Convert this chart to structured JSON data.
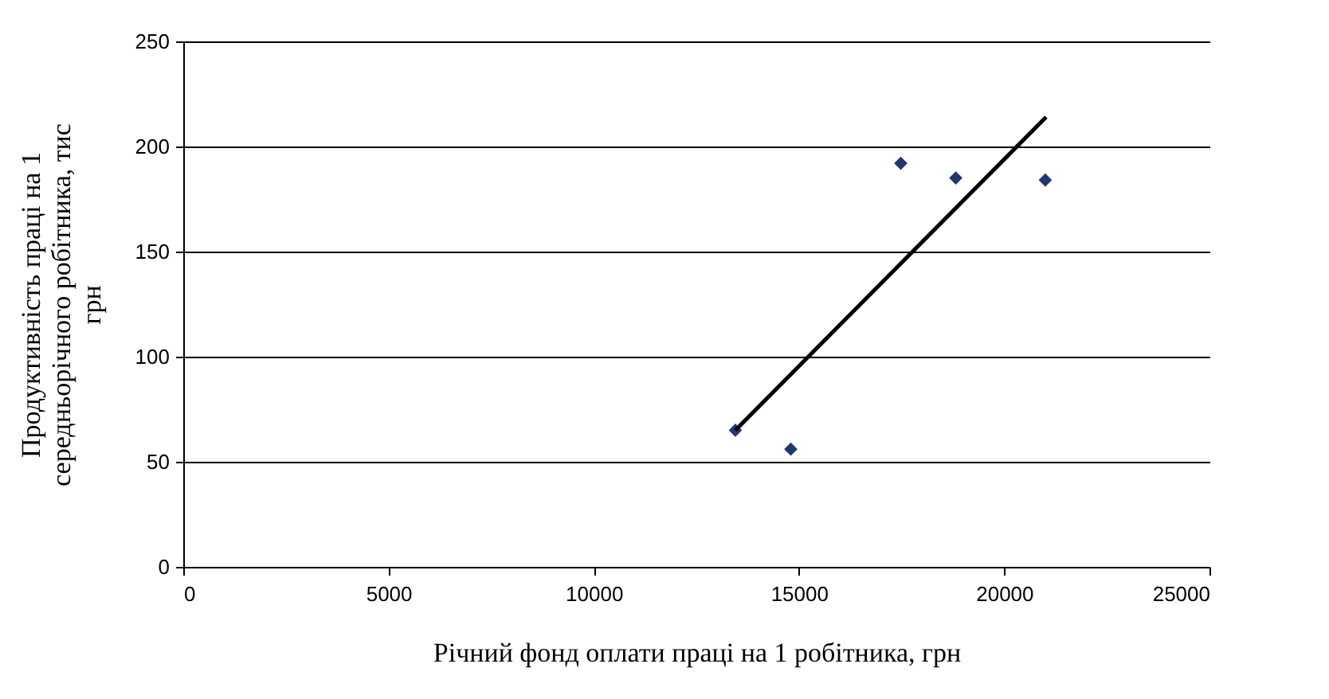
{
  "chart_data": {
    "type": "scatter",
    "xlabel": "Річний фонд оплати праці на 1 робітника, грн",
    "ylabel": "Продуктивність праці на 1 середньорічного робітника, тис грн",
    "xlim": [
      0,
      25000
    ],
    "xticks": [
      0,
      5000,
      10000,
      15000,
      20000,
      25000
    ],
    "ylim": [
      0,
      250
    ],
    "yticks": [
      0,
      50,
      100,
      150,
      200,
      250
    ],
    "grid": "y",
    "series": [
      {
        "marker": "diamond",
        "color": "#243672",
        "x": [
          13450,
          14800,
          17480,
          18820,
          21000
        ],
        "values": [
          65,
          56,
          192,
          185,
          184
        ]
      },
      {
        "type": "line",
        "marker": "none",
        "color": "#000000",
        "x": [
          13450,
          21020
        ],
        "values": [
          65,
          214
        ]
      }
    ]
  }
}
